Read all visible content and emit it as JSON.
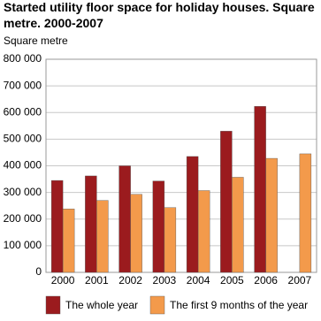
{
  "chart_data": {
    "type": "bar",
    "title": "Started utility floor space for holiday houses. Square metre. 2000-2007",
    "y_label": "Square metre",
    "categories": [
      "2000",
      "2001",
      "2002",
      "2003",
      "2004",
      "2005",
      "2006",
      "2007"
    ],
    "series": [
      {
        "name": "The whole year",
        "color": "#9b1b1e",
        "values": [
          345000,
          362000,
          400000,
          343000,
          435000,
          530000,
          623000,
          null
        ]
      },
      {
        "name": "The first 9 months of the year",
        "color": "#f39a4b",
        "values": [
          238000,
          270000,
          293000,
          243000,
          307000,
          357000,
          428000,
          445000
        ]
      }
    ],
    "ylim": [
      0,
      800000
    ],
    "yticks": [
      {
        "value": 0,
        "label": "0"
      },
      {
        "value": 100000,
        "label": "100 000"
      },
      {
        "value": 200000,
        "label": "200 000"
      },
      {
        "value": 300000,
        "label": "300 000"
      },
      {
        "value": 400000,
        "label": "400 000"
      },
      {
        "value": 500000,
        "label": "500 000"
      },
      {
        "value": 600000,
        "label": "600 000"
      },
      {
        "value": 700000,
        "label": "700 000"
      },
      {
        "value": 800000,
        "label": "800 000"
      }
    ],
    "grid": true
  }
}
